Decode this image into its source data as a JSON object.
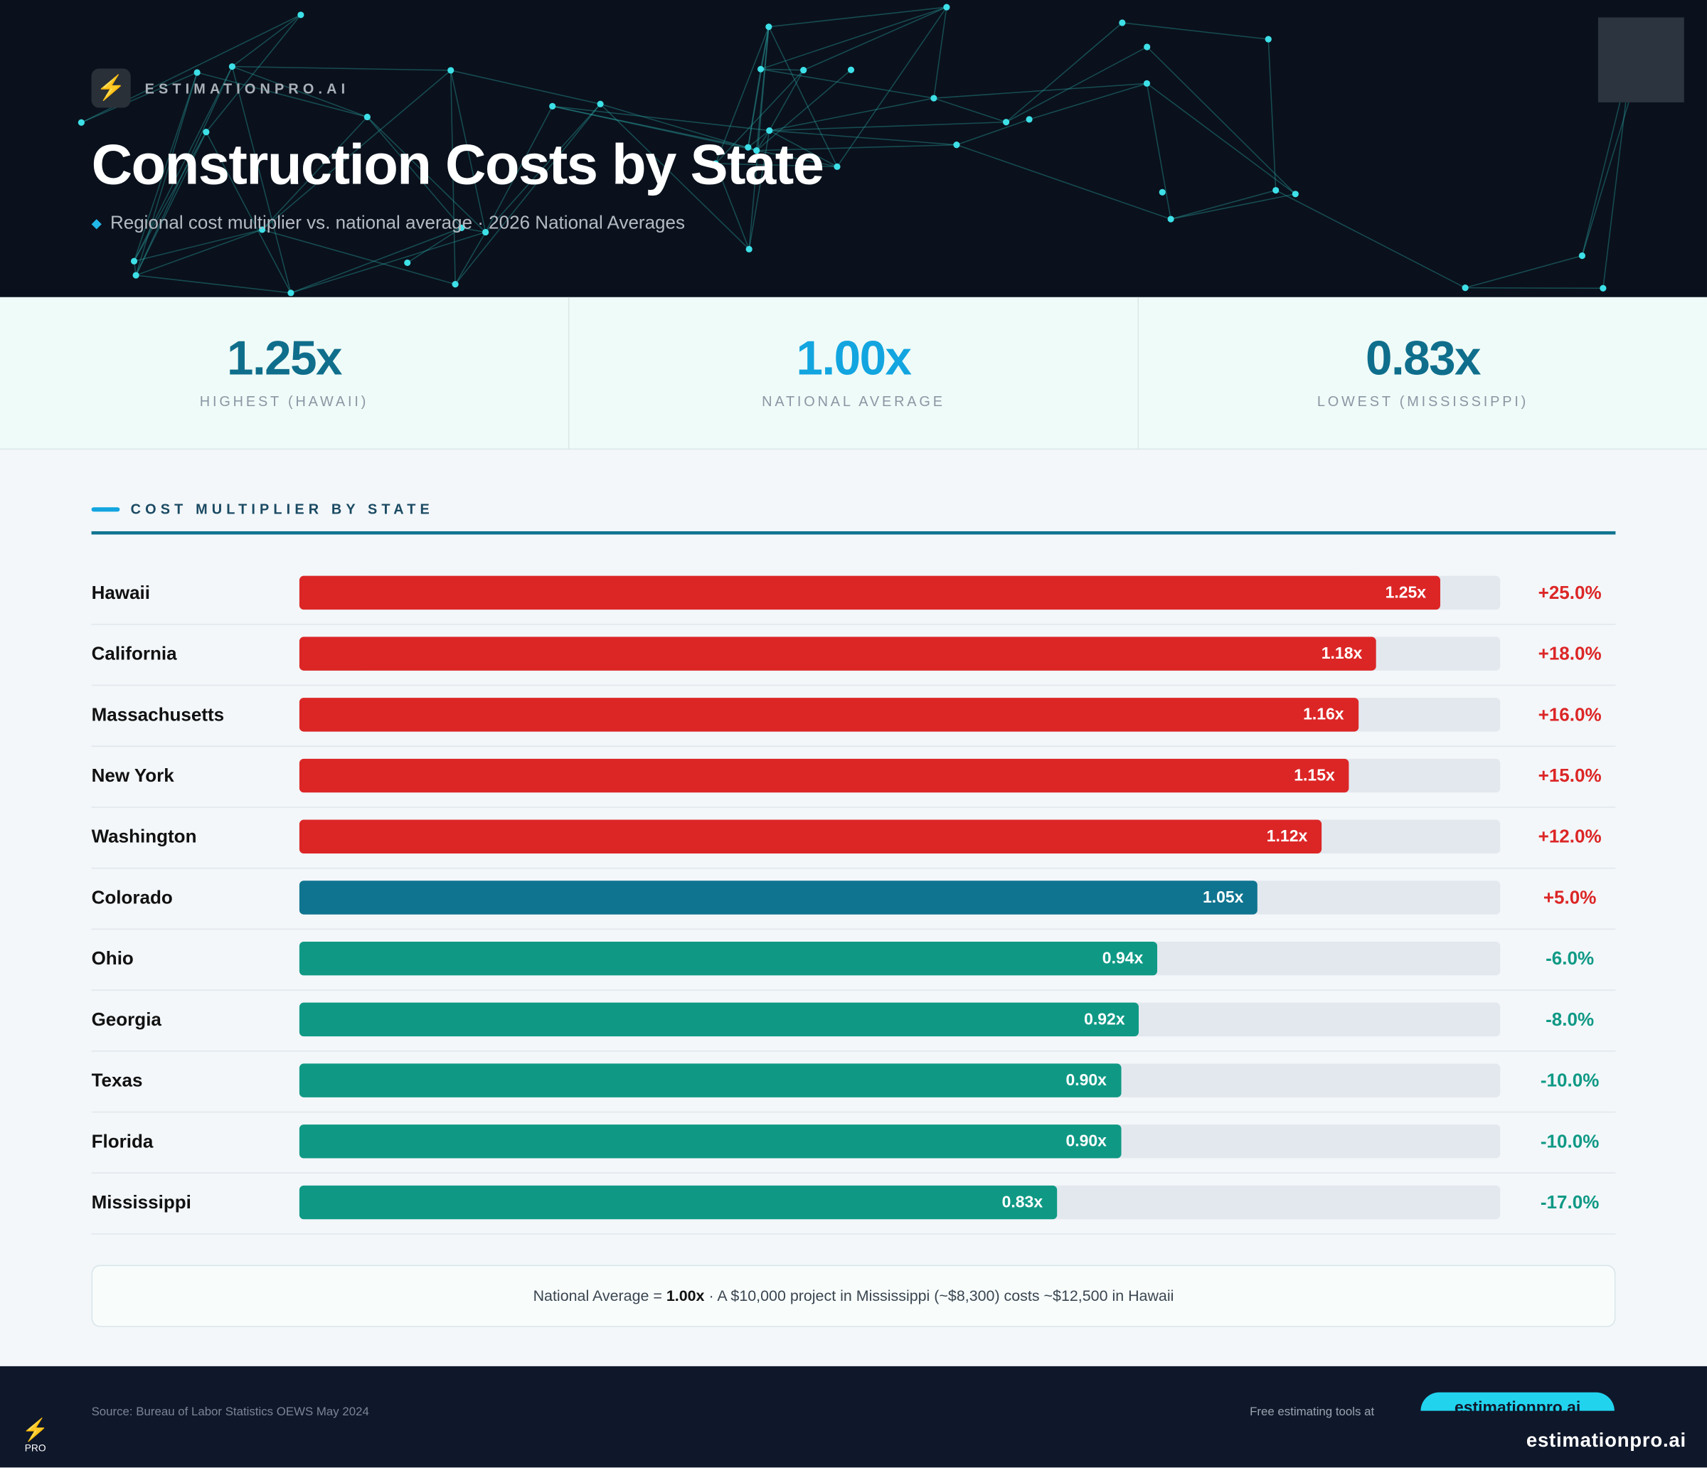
{
  "brand": {
    "name": "ESTIMATIONPRO.AI",
    "logo_icon": "lightning-bolt-icon"
  },
  "header": {
    "title": "Construction Costs by State",
    "subtitle": "Regional cost multiplier vs. national average · 2026 National Averages"
  },
  "stats": [
    {
      "value": "1.25x",
      "label": "HIGHEST (HAWAII)",
      "color": "#0f6e8c"
    },
    {
      "value": "1.00x",
      "label": "NATIONAL AVERAGE",
      "color": "#12a5e0"
    },
    {
      "value": "0.83x",
      "label": "LOWEST (MISSISSIPPI)",
      "color": "#0f6e8c"
    }
  ],
  "chart_data": {
    "type": "bar",
    "orientation": "horizontal",
    "title": "COST MULTIPLIER BY STATE",
    "categories": [
      "Hawaii",
      "California",
      "Massachusetts",
      "New York",
      "Washington",
      "Colorado",
      "Ohio",
      "Georgia",
      "Texas",
      "Florida",
      "Mississippi"
    ],
    "values": [
      1.25,
      1.18,
      1.16,
      1.15,
      1.12,
      1.05,
      0.94,
      0.92,
      0.9,
      0.9,
      0.83
    ],
    "value_labels": [
      "1.25x",
      "1.18x",
      "1.16x",
      "1.15x",
      "1.12x",
      "1.05x",
      "0.94x",
      "0.92x",
      "0.90x",
      "0.90x",
      "0.83x"
    ],
    "pct_labels": [
      "+25.0%",
      "+18.0%",
      "+16.0%",
      "+15.0%",
      "+12.0%",
      "+5.0%",
      "-6.0%",
      "-8.0%",
      "-10.0%",
      "-10.0%",
      "-17.0%"
    ],
    "colors": {
      "high": "#dc2626",
      "mid": "#0f7490",
      "low": "#0f9985",
      "high_text": "#dc2626",
      "low_text": "#0f9985"
    },
    "grid": false
  },
  "note": {
    "prefix": "National Average = ",
    "bold": "1.00x",
    "suffix": " · A $10,000 project in Mississippi (~$8,300) costs ~$12,500 in Hawaii"
  },
  "footer": {
    "source": "Source: Bureau of Labor Statistics OEWS May 2024",
    "free_tools": "Free estimating tools at",
    "cta": "estimationpro.ai",
    "logo_text": "PRO",
    "domain": "estimationpro.ai"
  }
}
